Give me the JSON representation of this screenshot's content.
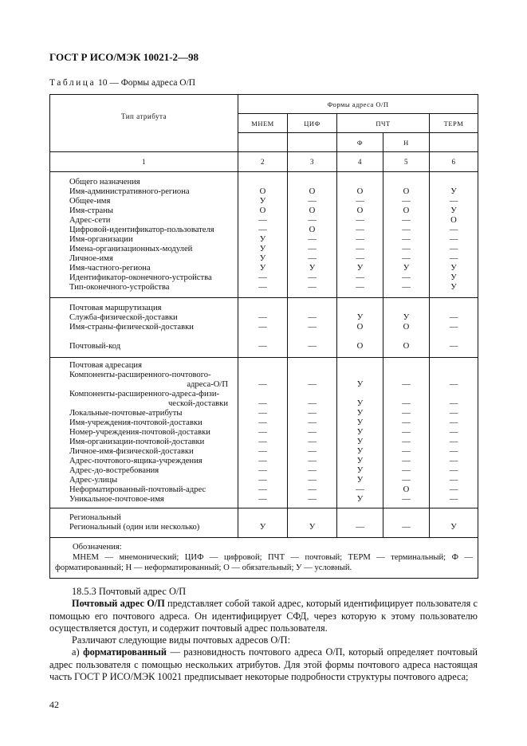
{
  "header": "ГОСТ Р ИСО/МЭК 10021-2—98",
  "caption": {
    "prefix": "Таблица",
    "rest": " 10 — Формы адреса О/П"
  },
  "table": {
    "col_attr": "Тип атрибута",
    "col_forms": "Формы адреса О/П",
    "forms": [
      "МНЕМ",
      "ЦИФ",
      "ПЧТ",
      "ТЕРМ"
    ],
    "subforms": [
      "Ф",
      "Н"
    ],
    "col_numbers": [
      "1",
      "2",
      "3",
      "4",
      "5",
      "6"
    ],
    "groups": [
      {
        "title": "Общего назначения",
        "rows": [
          {
            "label": "Имя-административного-региона",
            "values": [
              "О",
              "О",
              "О",
              "О",
              "У"
            ]
          },
          {
            "label": "Общее-имя",
            "values": [
              "У",
              "—",
              "—",
              "—",
              "—"
            ]
          },
          {
            "label": "Имя-страны",
            "values": [
              "О",
              "О",
              "О",
              "О",
              "У"
            ]
          },
          {
            "label": "Адрес-сети",
            "values": [
              "—",
              "—",
              "—",
              "—",
              "О"
            ]
          },
          {
            "label": "Цифровой-идентификатор-пользователя",
            "values": [
              "—",
              "О",
              "—",
              "—",
              "—"
            ]
          },
          {
            "label": "Имя-организации",
            "values": [
              "У",
              "—",
              "—",
              "—",
              "—"
            ]
          },
          {
            "label": "Имена-организационных-модулей",
            "values": [
              "У",
              "—",
              "—",
              "—",
              "—"
            ]
          },
          {
            "label": "Личное-имя",
            "values": [
              "У",
              "—",
              "—",
              "—",
              "—"
            ]
          },
          {
            "label": "Имя-частного-региона",
            "values": [
              "У",
              "У",
              "У",
              "У",
              "У"
            ]
          },
          {
            "label": "Идентификатор-оконечного-устройства",
            "values": [
              "—",
              "—",
              "—",
              "—",
              "У"
            ]
          },
          {
            "label": "Тип-оконечного-устройства",
            "values": [
              "—",
              "—",
              "—",
              "—",
              "У"
            ]
          }
        ]
      },
      {
        "title": "Почтовая маршрутизация",
        "rows": [
          {
            "label": "Служба-физической-доставки",
            "values": [
              "—",
              "—",
              "У",
              "У",
              "—"
            ]
          },
          {
            "label": "Имя-страны-физической-доставки",
            "values": [
              "—",
              "—",
              "О",
              "О",
              "—"
            ]
          },
          {
            "label": "",
            "values": [
              "",
              "",
              "",
              "",
              ""
            ]
          },
          {
            "label": "Почтовый-код",
            "values": [
              "—",
              "—",
              "О",
              "О",
              "—"
            ]
          }
        ]
      },
      {
        "title": "Почтовая адресация",
        "rows": [
          {
            "label": "Компоненты-расширенного-почтового-",
            "label_cont": "адреса-О/П",
            "values": [
              "—",
              "—",
              "У",
              "—",
              "—"
            ]
          },
          {
            "label": "Компоненты-расширенного-адреса-физи-",
            "label_cont": "ческой-доставки",
            "values": [
              "—",
              "—",
              "У",
              "—",
              "—"
            ]
          },
          {
            "label": "Локальные-почтовые-атрибуты",
            "values": [
              "—",
              "—",
              "У",
              "—",
              "—"
            ]
          },
          {
            "label": "Имя-учреждения-почтовой-доставки",
            "values": [
              "—",
              "—",
              "У",
              "—",
              "—"
            ]
          },
          {
            "label": "Номер-учреждения-почтовой-доставки",
            "values": [
              "—",
              "—",
              "У",
              "—",
              "—"
            ]
          },
          {
            "label": "Имя-организации-почтовой-доставки",
            "values": [
              "—",
              "—",
              "У",
              "—",
              "—"
            ]
          },
          {
            "label": "Личное-имя-физической-доставки",
            "values": [
              "—",
              "—",
              "У",
              "—",
              "—"
            ]
          },
          {
            "label": "Адрес-почтового-ящика-учреждения",
            "values": [
              "—",
              "—",
              "У",
              "—",
              "—"
            ]
          },
          {
            "label": "Адрес-до-востребования",
            "values": [
              "—",
              "—",
              "У",
              "—",
              "—"
            ]
          },
          {
            "label": "Адрес-улицы",
            "values": [
              "—",
              "—",
              "У",
              "—",
              "—"
            ]
          },
          {
            "label": "Неформатированный-почтовый-адрес",
            "values": [
              "—",
              "—",
              "—",
              "О",
              "—"
            ]
          },
          {
            "label": "Уникальное-почтовое-имя",
            "values": [
              "—",
              "—",
              "У",
              "—",
              "—"
            ]
          }
        ]
      },
      {
        "title": "Региональный",
        "rows": [
          {
            "label": "Региональный (один или несколько)",
            "values": [
              "У",
              "У",
              "—",
              "—",
              "У"
            ]
          }
        ]
      }
    ],
    "notes_title": "Обозначения:",
    "notes_text": "МНЕМ — мнемонический; ЦИФ — цифровой; ПЧТ — почтовый; ТЕРМ — терминальный; Ф — форматированный; Н — неформатированный; О — обязательный; У — условный."
  },
  "body": {
    "section": "18.5.3 Почтовый адрес О/П",
    "p1_bold": "Почтовый адрес О/П",
    "p1_rest": " представляет собой такой адрес, который идентифицирует пользователя с помощью его почтового адреса. Он идентифицирует СФД, через которую к этому пользователю осуществляется доступ, и содержит почтовый адрес пользователя.",
    "p2": "Различают следующие виды почтовых адресов О/П:",
    "p3_prefix": "а) ",
    "p3_bold": "форматированный",
    "p3_rest": " — разновидность почтового адреса О/П, который определяет почтовый адрес пользователя с помощью нескольких атрибутов. Для этой формы почтового адреса настоящая часть ГОСТ Р ИСО/МЭК 10021 предписывает некоторые подробности структуры почтового адреса;"
  },
  "page_number": "42"
}
